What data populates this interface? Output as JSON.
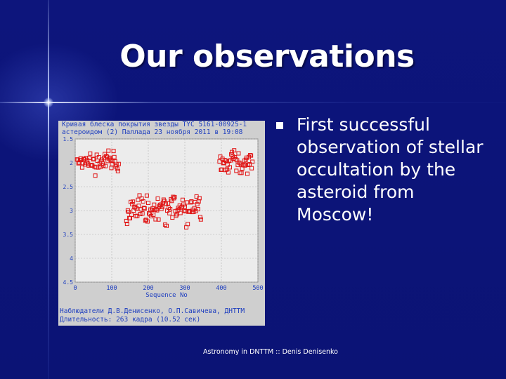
{
  "slide": {
    "title": "Our observations",
    "bullet": "First successful observation of stellar occultation by the asteroid from Moscow!",
    "footer": "Astronomy in DNTTM :: Denis Denisenko",
    "colors": {
      "background": "#0c1479",
      "text": "#ffffff",
      "figure_text": "#1f3fbf",
      "marker": "#e01515"
    }
  },
  "figure": {
    "header_lines": [
      "Кривая блеска покрытия звезды TYC 5161-00925-1",
      "астероидом (2) Паллада 23 ноября 2011 в 19:08"
    ],
    "footer_lines": [
      "Наблюдатели Д.В.Денисенко, О.П.Савичева, ДНТТМ",
      "Длительность: 263 кадра (10.52 сек)"
    ]
  },
  "chart_data": {
    "type": "scatter",
    "xlabel": "Sequence No",
    "ylabel": "",
    "xlim": [
      0,
      500
    ],
    "ylim": [
      4.5,
      1.5
    ],
    "y_inverted": true,
    "x_ticks": [
      0,
      100,
      200,
      300,
      400,
      500
    ],
    "y_ticks": [
      1.5,
      2,
      2.5,
      3,
      3.5,
      4,
      4.5
    ],
    "y_tick_labels": [
      "1.5",
      "2",
      "2.5",
      "3",
      "3.5",
      "4",
      "4.5"
    ],
    "grid": true,
    "marker": "open-square",
    "series_description": "baseline ~2.0 for x<120 and x>395, occulted ~3.0 for 140<=x<=345",
    "segments": [
      {
        "x_range": [
          5,
          120
        ],
        "y_mean": 2.0,
        "y_spread": 0.16
      },
      {
        "x_range": [
          140,
          345
        ],
        "y_mean": 3.0,
        "y_spread": 0.22
      },
      {
        "x_range": [
          395,
          485
        ],
        "y_mean": 2.0,
        "y_spread": 0.18
      }
    ]
  }
}
